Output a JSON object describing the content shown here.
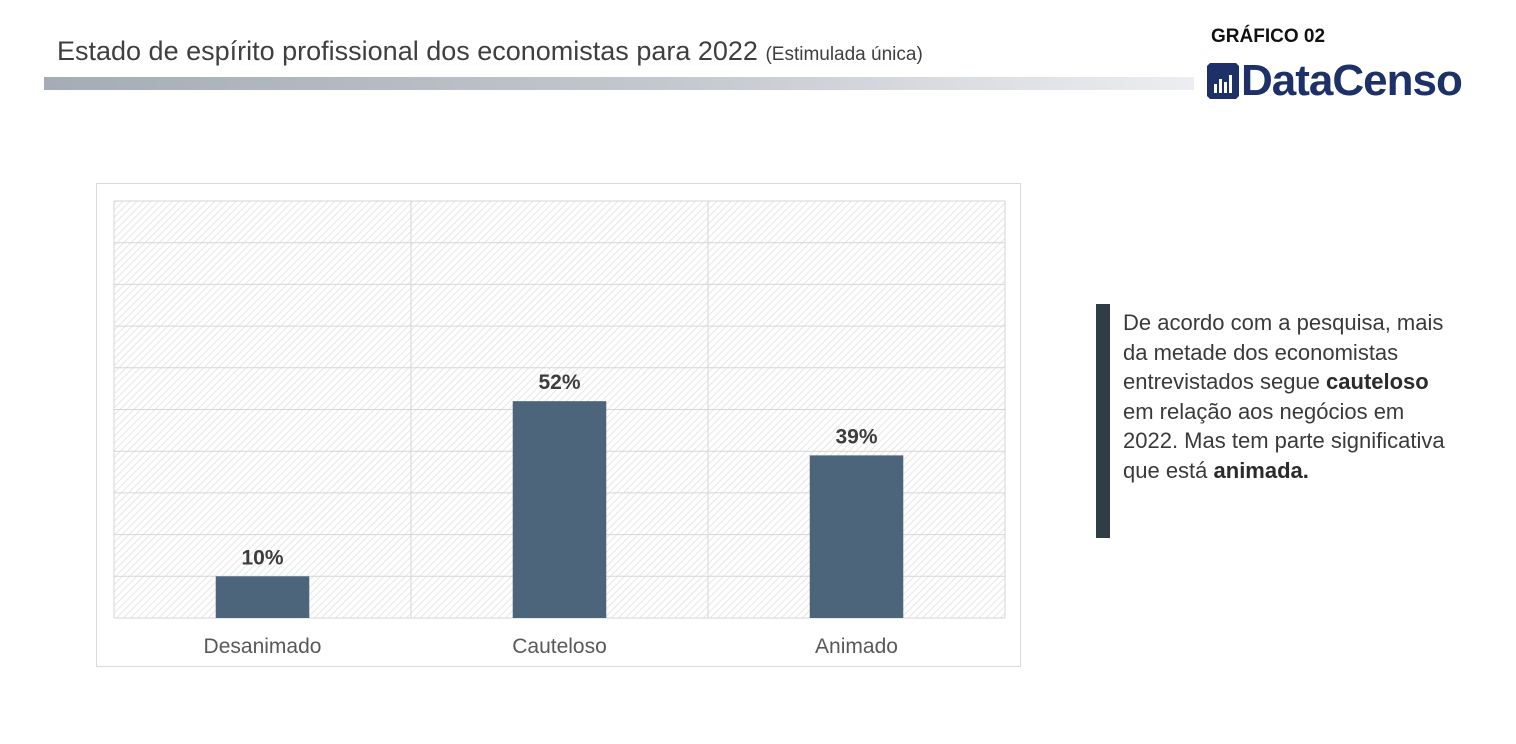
{
  "header": {
    "title": "Estado de espírito profissional dos economistas para 2022",
    "title_note": "(Estimulada única)",
    "chart_number": "GRÁFICO 02",
    "logo_text": "DataCenso",
    "logo_icon": "bar-chart-icon",
    "logo_color": "#1d3168"
  },
  "chart_data": {
    "type": "bar",
    "categories": [
      "Desanimado",
      "Cauteloso",
      "Animado"
    ],
    "values": [
      10,
      52,
      39
    ],
    "data_labels": [
      "10%",
      "52%",
      "39%"
    ],
    "unit": "%",
    "ylim": [
      0,
      100
    ],
    "grid": true,
    "bar_color": "#4d657a"
  },
  "callout": {
    "accent_color": "#2f3d46",
    "parts": [
      {
        "text": "De acordo com a pesquisa, mais da metade dos economistas entrevistados segue ",
        "bold": false
      },
      {
        "text": "cauteloso",
        "bold": true
      },
      {
        "text": " em relação aos negócios em 2022. Mas tem parte significativa que está ",
        "bold": false
      },
      {
        "text": "animada.",
        "bold": true
      }
    ]
  }
}
